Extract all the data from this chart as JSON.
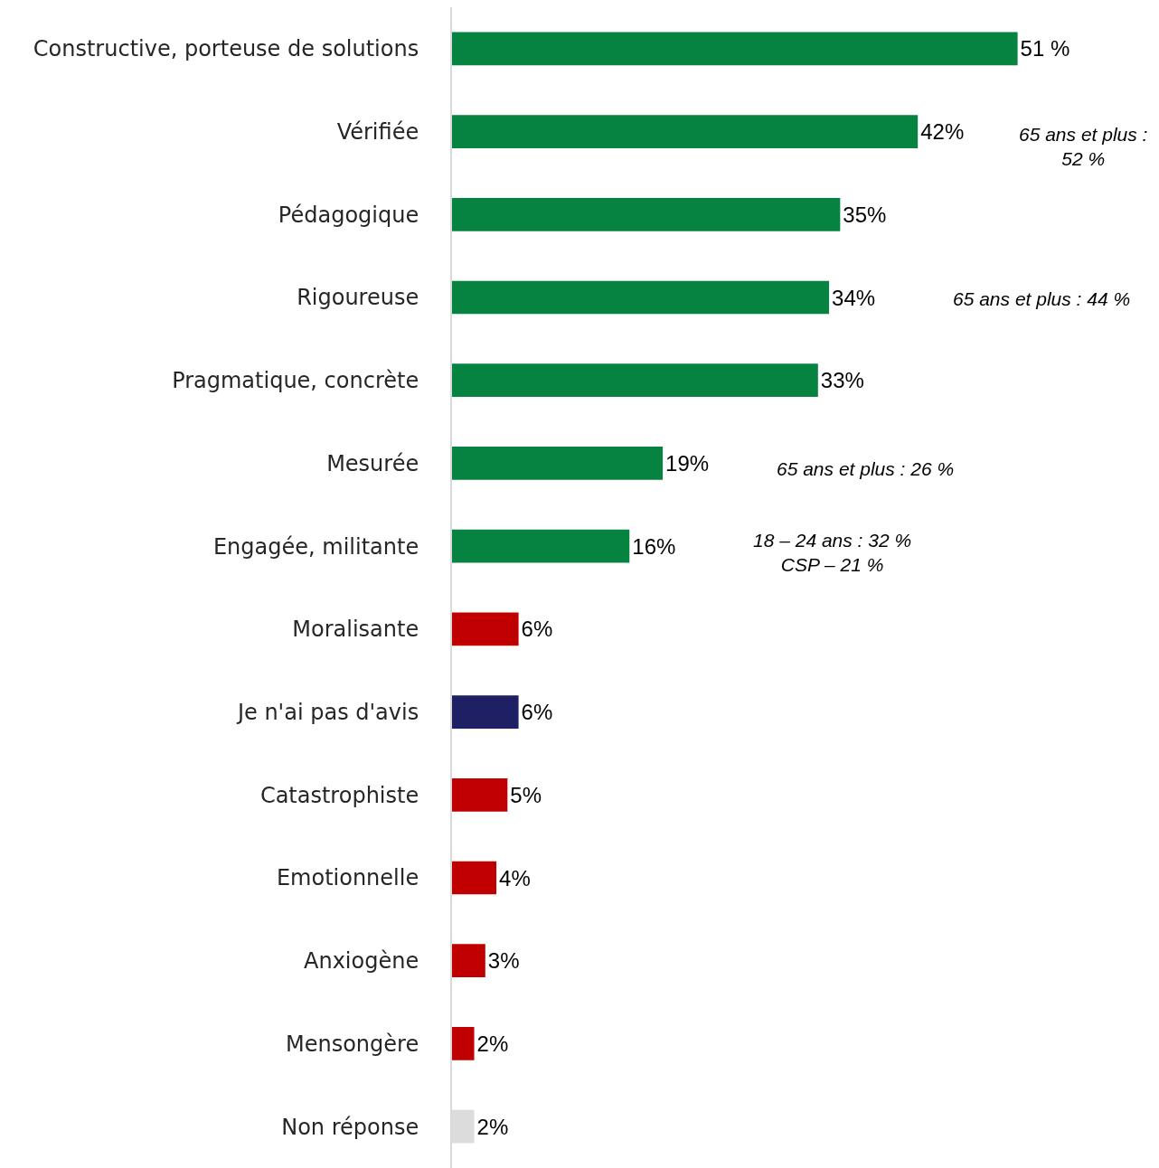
{
  "chart_data": {
    "type": "bar",
    "orientation": "horizontal",
    "categories": [
      "Constructive, porteuse de solutions",
      "Vérifiée",
      "Pédagogique",
      "Rigoureuse",
      "Pragmatique, concrète",
      "Mesurée",
      "Engagée, militante",
      "Moralisante",
      "Je n'ai pas d'avis",
      "Catastrophiste",
      "Emotionnelle",
      "Anxiogène",
      "Mensongère",
      "Non réponse"
    ],
    "values": [
      51,
      42,
      35,
      34,
      33,
      19,
      16,
      6,
      6,
      5,
      4,
      3,
      2,
      2
    ],
    "value_labels": [
      "51 %",
      "42%",
      "35%",
      "34%",
      "33%",
      "19%",
      "16%",
      "6%",
      "6%",
      "5%",
      "4%",
      "3%",
      "2%",
      "2%"
    ],
    "colors": [
      "#068241",
      "#068241",
      "#068241",
      "#068241",
      "#068241",
      "#068241",
      "#068241",
      "#c00000",
      "#1f1f63",
      "#c00000",
      "#c00000",
      "#c00000",
      "#c00000",
      "#dcdcdc"
    ],
    "annotations": [
      "65 ans et plus :\n52 %",
      "65 ans et plus : 44 %",
      "65 ans et plus : 26 %",
      "18 – 24 ans : 32 %\nCSP – 21 %"
    ],
    "legend": false
  }
}
